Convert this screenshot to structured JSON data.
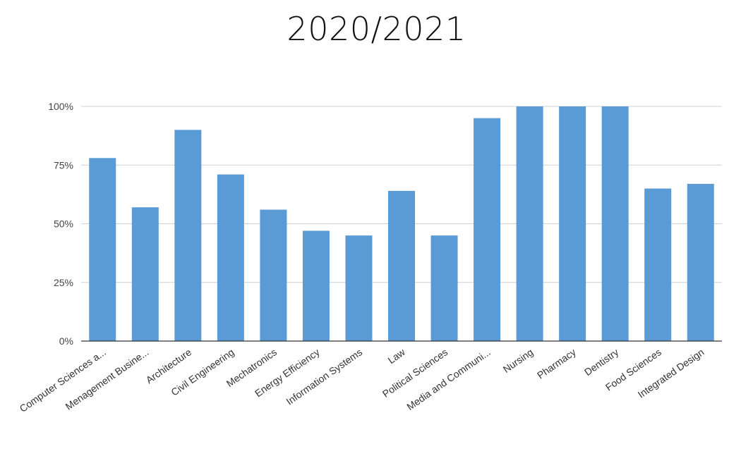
{
  "chart_data": {
    "type": "bar",
    "title": "2020/2021",
    "categories": [
      "Computer Sciences a...",
      "Menagement Busine...",
      "Architecture",
      "Civil Engineering",
      "Mechatronics",
      "Energy Efficiency",
      "Information Systems",
      "Law",
      "Political Sciences",
      "Media and Communi...",
      "Nursing",
      "Pharmacy",
      "Dentistry",
      "Food Sciences",
      "Integrated Design"
    ],
    "values": [
      78,
      57,
      90,
      71,
      56,
      47,
      45,
      64,
      45,
      95,
      100,
      100,
      100,
      65,
      67
    ],
    "ylim": [
      0,
      100
    ],
    "yticks": [
      "0%",
      "25%",
      "50%",
      "75%",
      "100%"
    ],
    "grid": true,
    "bar_color": "#5b9bd5"
  }
}
